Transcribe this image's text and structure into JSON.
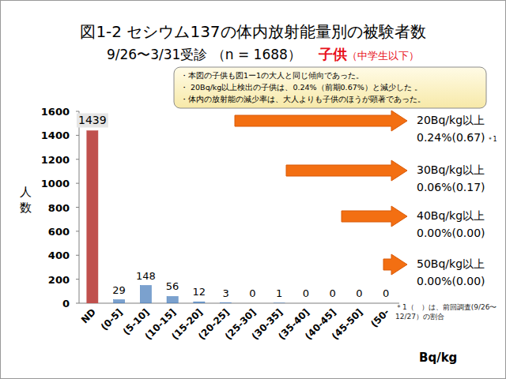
{
  "chart_data": {
    "type": "bar",
    "title": "図1-2  セシウム137の体内放射能量別の被験者数",
    "subtitle": "9/26〜3/31受診 （n = 1688）",
    "subtitle_highlight": "子供",
    "subtitle_highlight_note": "（中学生以下）",
    "notes": [
      "・本図の子供も図1ー1の大人と同じ傾向であった。",
      "・ 20Bq/kg以上検出の子供は、0.24%（前期0.67%）と減少した 。",
      "・体内の放射能の減少率は、大人よりも子供のほうが顕著であった。"
    ],
    "y_label": "人数",
    "x_label": "Bq/kg",
    "categories": [
      "ND",
      "(0-5]",
      "(5-10]",
      "(10-15]",
      "(15-20]",
      "(20-25]",
      "(25-30]",
      "(30-35]",
      "(35-40]",
      "(40-45]",
      "(45-50]",
      "(50-"
    ],
    "values": [
      1439,
      29,
      148,
      56,
      12,
      3,
      0,
      1,
      0,
      0,
      0,
      0
    ],
    "colors": [
      "#c0504d",
      "#4f81bd",
      "#4f81bd",
      "#4f81bd",
      "#4f81bd",
      "#4f81bd",
      "#4f81bd",
      "#4f81bd",
      "#4f81bd",
      "#4f81bd",
      "#4f81bd",
      "#4f81bd"
    ],
    "ylim": [
      0,
      1600
    ],
    "yticks": [
      0,
      200,
      400,
      600,
      800,
      1000,
      1200,
      1400,
      1600
    ],
    "grid": false,
    "data_labels": true,
    "annotations": [
      {
        "label": "20Bq/kg以上",
        "text": "0.24%(0.67)",
        "mark": "＊1"
      },
      {
        "label": "30Bq/kg以上",
        "text": "0.06%(0.17)"
      },
      {
        "label": "40Bq/kg以上",
        "text": "0.00%(0.00)"
      },
      {
        "label": "50Bq/kg以上",
        "text": "0.00%(0.00)"
      }
    ],
    "footnote": "＊1（　）は、前回調査(9/26〜12/27）の割合"
  }
}
